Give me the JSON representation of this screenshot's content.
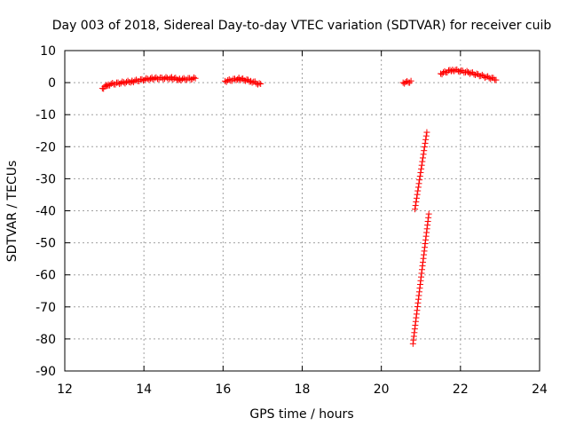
{
  "chart_data": {
    "type": "scatter",
    "title": "Day 003 of 2018, Sidereal Day-to-day VTEC variation (SDTVAR) for receiver cuib",
    "xlabel": "GPS time / hours",
    "ylabel": "SDTVAR / TECUs",
    "xlim": [
      12,
      24
    ],
    "ylim": [
      -90,
      10
    ],
    "xticks": [
      12,
      14,
      16,
      18,
      20,
      22,
      24
    ],
    "yticks": [
      10,
      0,
      -10,
      -20,
      -30,
      -40,
      -50,
      -60,
      -70,
      -80,
      -90
    ],
    "grid": true,
    "marker": "+",
    "color": "#ff0000",
    "segments": [
      {
        "x_start": 12.95,
        "x_end": 13.1,
        "y_start": -1.8,
        "y_end": -0.6,
        "dense": true
      },
      {
        "x_start": 13.1,
        "x_end": 13.7,
        "y_start": -0.6,
        "y_end": 0.4,
        "dense": true
      },
      {
        "x_start": 13.7,
        "x_end": 14.2,
        "y_start": 0.4,
        "y_end": 1.3,
        "dense": true
      },
      {
        "x_start": 14.2,
        "x_end": 14.7,
        "y_start": 1.3,
        "y_end": 1.4,
        "dense": true
      },
      {
        "x_start": 14.7,
        "x_end": 14.9,
        "y_start": 1.4,
        "y_end": 1.0,
        "dense": true
      },
      {
        "x_start": 14.9,
        "x_end": 15.3,
        "y_start": 1.0,
        "y_end": 1.3,
        "dense": true
      },
      {
        "x_start": 16.05,
        "x_end": 16.4,
        "y_start": 0.5,
        "y_end": 1.2,
        "dense": true
      },
      {
        "x_start": 16.4,
        "x_end": 16.7,
        "y_start": 1.2,
        "y_end": 0.5,
        "dense": true
      },
      {
        "x_start": 16.7,
        "x_end": 16.95,
        "y_start": 0.5,
        "y_end": -0.6,
        "dense": true
      },
      {
        "x_start": 20.55,
        "x_end": 20.75,
        "y_start": 0.0,
        "y_end": 0.3,
        "dense": true
      },
      {
        "x_start": 20.85,
        "x_end": 21.15,
        "y_start": -39.5,
        "y_end": -15.5,
        "dense": false
      },
      {
        "x_start": 20.8,
        "x_end": 21.2,
        "y_start": -81.5,
        "y_end": -41.0,
        "dense": false
      },
      {
        "x_start": 21.5,
        "x_end": 21.8,
        "y_start": 2.8,
        "y_end": 4.0,
        "dense": true
      },
      {
        "x_start": 21.8,
        "x_end": 22.2,
        "y_start": 4.0,
        "y_end": 3.2,
        "dense": true
      },
      {
        "x_start": 22.2,
        "x_end": 22.9,
        "y_start": 3.2,
        "y_end": 1.0,
        "dense": true
      }
    ]
  }
}
